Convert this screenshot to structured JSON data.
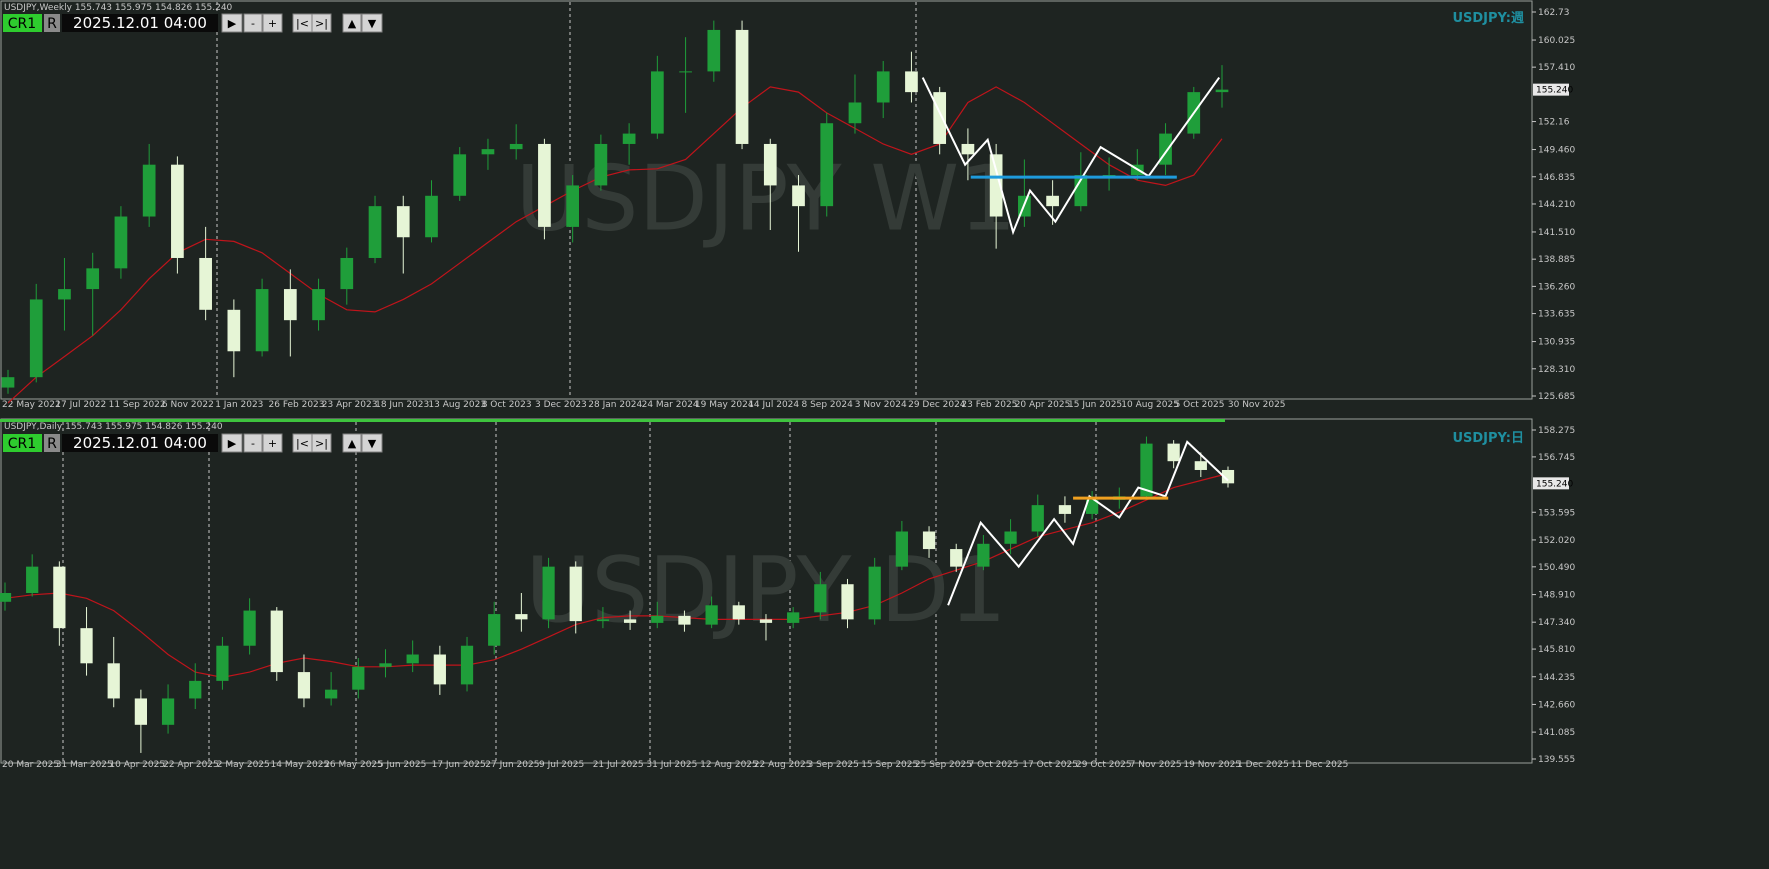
{
  "panels": [
    {
      "header": "USDJPY,Weekly  155.743 155.975 154.826 155.240",
      "cr": "CR1",
      "r": "R",
      "datetime": "2025.12.01 04:00",
      "buttons": [
        "▶",
        "-",
        "+",
        "|<",
        ">|",
        "▲",
        "▼"
      ],
      "watermark": "USDJPY W1",
      "symbol_tag": "USDJPY:週",
      "ylim": [
        125.685,
        162.73
      ],
      "yticks": [
        162.73,
        160.025,
        {
          "value": 157.41,
          "label": "157.410"
        },
        152.16,
        {
          "value": 149.46,
          "label": "149.460"
        },
        146.835,
        {
          "value": 144.21,
          "label": "144.210"
        },
        {
          "value": 141.51,
          "label": "141.510"
        },
        138.885,
        {
          "value": 136.26,
          "label": "136.260"
        },
        133.635,
        130.935,
        {
          "value": 128.31,
          "label": "128.310"
        },
        125.685
      ],
      "price_tag": 155.24,
      "price_tag_label": "155.240",
      "xticks": [
        "22 May 2022",
        "17 Jul 2022",
        "11 Sep 2022",
        "6 Nov 2022",
        "1 Jan 2023",
        "26 Feb 2023",
        "23 Apr 2023",
        "18 Jun 2023",
        "13 Aug 2023",
        "8 Oct 2023",
        "3 Dec 2023",
        "28 Jan 2024",
        "24 Mar 2024",
        "19 May 2024",
        "14 Jul 2024",
        "8 Sep 2024",
        "3 Nov 2024",
        "29 Dec 2024",
        "23 Feb 2025",
        "20 Apr 2025",
        "15 Jun 2025",
        "10 Aug 2025",
        "5 Oct 2025",
        "30 Nov 2025"
      ],
      "candles": [
        [
          126.5,
          128.2,
          125.9,
          127.5
        ],
        [
          127.5,
          136.5,
          127,
          135
        ],
        [
          135,
          139,
          132,
          136
        ],
        [
          136,
          139.5,
          131.5,
          138
        ],
        [
          138,
          144,
          137,
          143
        ],
        [
          143,
          150,
          142,
          148
        ],
        [
          148,
          148.8,
          137.5,
          139
        ],
        [
          139,
          142,
          133,
          134
        ],
        [
          134,
          135,
          127.5,
          130
        ],
        [
          130,
          137,
          129.5,
          136
        ],
        [
          136,
          137.9,
          129.5,
          133
        ],
        [
          133,
          137,
          132,
          136
        ],
        [
          136,
          140,
          134.5,
          139
        ],
        [
          139,
          145,
          138.5,
          144
        ],
        [
          144,
          145,
          137.5,
          141
        ],
        [
          141,
          146.5,
          140.5,
          145
        ],
        [
          145,
          149.7,
          144.5,
          149
        ],
        [
          149,
          150.5,
          147.5,
          149.5
        ],
        [
          149.5,
          151.9,
          148.5,
          150
        ],
        [
          150,
          150.5,
          140.8,
          142
        ],
        [
          142,
          147,
          140.5,
          146
        ],
        [
          146,
          150.9,
          145.5,
          150
        ],
        [
          150,
          152,
          148,
          151
        ],
        [
          151,
          158.5,
          150.5,
          157
        ],
        [
          157,
          160.3,
          153,
          157
        ],
        [
          157,
          161.9,
          156,
          161
        ],
        [
          161,
          161.9,
          149.5,
          150
        ],
        [
          150,
          150.5,
          141.7,
          146
        ],
        [
          146,
          147,
          139.6,
          144
        ],
        [
          144,
          153,
          143,
          152
        ],
        [
          152,
          156.7,
          151,
          154
        ],
        [
          154,
          158,
          152.5,
          157
        ],
        [
          157,
          158.9,
          154,
          155
        ],
        [
          155,
          155.5,
          149,
          150
        ],
        [
          150,
          151.5,
          146.5,
          149
        ],
        [
          149,
          150,
          139.9,
          143
        ],
        [
          143,
          148.5,
          142,
          145
        ],
        [
          145,
          146.5,
          142.2,
          144
        ],
        [
          144,
          149.2,
          143.5,
          147
        ],
        [
          147,
          148.7,
          145.5,
          147
        ],
        [
          147,
          149.5,
          146.5,
          148
        ],
        [
          148,
          152,
          147,
          151
        ],
        [
          151,
          155.5,
          150.5,
          155
        ],
        [
          155,
          157.6,
          153.5,
          155.24
        ]
      ],
      "ma": [
        125,
        127.5,
        129.5,
        131.5,
        134,
        137,
        139.5,
        140.8,
        140.6,
        139.5,
        137.5,
        135.5,
        134,
        133.8,
        135,
        136.5,
        138.5,
        140.5,
        142.5,
        144,
        145.5,
        146.8,
        147.5,
        147.6,
        148.5,
        151,
        153.5,
        155.5,
        155,
        153,
        151.5,
        150,
        149,
        150,
        154,
        155.5,
        154,
        152,
        150,
        148,
        146.5,
        146,
        147,
        150.5
      ],
      "zigzag": {
        "x": [
          32.4,
          33.9,
          34.7,
          35.6,
          36.2,
          37.1,
          38.7,
          40.4,
          42.9
        ],
        "values": [
          156.4,
          148,
          150.4,
          141.5,
          145.5,
          142.5,
          149.7,
          146.9,
          156.4
        ]
      },
      "level": {
        "x": [
          34.1,
          41.4
        ],
        "value": 146.8,
        "color": "#1e9bdc"
      }
    },
    {
      "header": "USDJPY,Daily  155.743 155.975 154.826 155.240",
      "cr": "CR1",
      "r": "R",
      "datetime": "2025.12.01 04:00",
      "buttons": [
        "▶",
        "-",
        "+",
        "|<",
        ">|",
        "▲",
        "▼"
      ],
      "watermark": "USDJPY D1",
      "symbol_tag": "USDJPY:日",
      "ylim": [
        139.555,
        158.275
      ],
      "yticks": [
        158.275,
        156.745,
        153.595,
        {
          "value": 152.02,
          "label": "152.020"
        },
        {
          "value": 150.49,
          "label": "150.490"
        },
        {
          "value": 148.91,
          "label": "148.910"
        },
        {
          "value": 147.34,
          "label": "147.340"
        },
        {
          "value": 145.81,
          "label": "145.810"
        },
        144.235,
        {
          "value": 142.66,
          "label": "142.660"
        },
        141.085,
        139.555
      ],
      "price_tag": 155.24,
      "price_tag_label": "155.240",
      "xticks": [
        "20 Mar 2025",
        "31 Mar 2025",
        "10 Apr 2025",
        "22 Apr 2025",
        "2 May 2025",
        "14 May 2025",
        "26 May 2025",
        "5 Jun 2025",
        "17 Jun 2025",
        "27 Jun 2025",
        "9 Jul 2025",
        "21 Jul 2025",
        "31 Jul 2025",
        "12 Aug 2025",
        "22 Aug 2025",
        "3 Sep 2025",
        "15 Sep 2025",
        "25 Sep 2025",
        "7 Oct 2025",
        "17 Oct 2025",
        "29 Oct 2025",
        "7 Nov 2025",
        "19 Nov 2025",
        "1 Dec 2025",
        "11 Dec 2025"
      ],
      "candles": [
        [
          148.5,
          149.6,
          148,
          149
        ],
        [
          149,
          151.2,
          148.8,
          150.5
        ],
        [
          150.5,
          150.8,
          146,
          147
        ],
        [
          147,
          148.2,
          144.3,
          145
        ],
        [
          145,
          146.5,
          142.5,
          143
        ],
        [
          143,
          143.5,
          139.9,
          141.5
        ],
        [
          141.5,
          143.8,
          141,
          143
        ],
        [
          143,
          145,
          142.4,
          144
        ],
        [
          144,
          146.5,
          143.5,
          146
        ],
        [
          146,
          148.7,
          145.5,
          148
        ],
        [
          148,
          148.2,
          144,
          144.5
        ],
        [
          144.5,
          145.5,
          142.5,
          143
        ],
        [
          143,
          144.5,
          142.6,
          143.5
        ],
        [
          143.5,
          145.3,
          143,
          144.8
        ],
        [
          144.8,
          145.8,
          144.2,
          145
        ],
        [
          145,
          146.3,
          144.5,
          145.5
        ],
        [
          145.5,
          146,
          143.2,
          143.8
        ],
        [
          143.8,
          146.5,
          143.4,
          146
        ],
        [
          146,
          148.5,
          145.5,
          147.8
        ],
        [
          147.8,
          149,
          146.8,
          147.5
        ],
        [
          147.5,
          151,
          147,
          150.5
        ],
        [
          150.5,
          150.8,
          146.7,
          147.4
        ],
        [
          147.4,
          148.2,
          147,
          147.5
        ],
        [
          147.5,
          148,
          146.9,
          147.3
        ],
        [
          147.3,
          148.5,
          147,
          147.7
        ],
        [
          147.7,
          148,
          146.8,
          147.2
        ],
        [
          147.2,
          148.8,
          147,
          148.3
        ],
        [
          148.3,
          148.5,
          147.2,
          147.5
        ],
        [
          147.5,
          147.8,
          146.3,
          147.3
        ],
        [
          147.3,
          148.2,
          147,
          147.9
        ],
        [
          147.9,
          150.2,
          147.5,
          149.5
        ],
        [
          149.5,
          149.8,
          147,
          147.5
        ],
        [
          147.5,
          151,
          147.2,
          150.5
        ],
        [
          150.5,
          153.1,
          150.3,
          152.5
        ],
        [
          152.5,
          152.8,
          151,
          151.5
        ],
        [
          151.5,
          151.8,
          150.2,
          150.5
        ],
        [
          150.5,
          152.3,
          150.3,
          151.8
        ],
        [
          151.8,
          153.2,
          151.2,
          152.5
        ],
        [
          152.5,
          154.6,
          152.2,
          154
        ],
        [
          154,
          154.5,
          153,
          153.5
        ],
        [
          153.5,
          154.8,
          153.2,
          154.3
        ],
        [
          154.3,
          155,
          153.8,
          154.5
        ],
        [
          154.5,
          157.9,
          154.3,
          157.5
        ],
        [
          157.5,
          157.7,
          156.1,
          156.5
        ],
        [
          156.5,
          157,
          155.6,
          156
        ],
        [
          156,
          156.2,
          155,
          155.24
        ]
      ],
      "ma": [
        148.7,
        148.9,
        149,
        148.7,
        148,
        146.8,
        145.5,
        144.5,
        144.2,
        144.5,
        145,
        145.3,
        145.1,
        144.8,
        144.8,
        144.9,
        144.9,
        144.9,
        145.2,
        145.8,
        146.5,
        147.2,
        147.6,
        147.7,
        147.7,
        147.6,
        147.5,
        147.5,
        147.5,
        147.5,
        147.7,
        147.9,
        148.3,
        149,
        149.8,
        150.3,
        150.8,
        151.5,
        152.2,
        152.6,
        153,
        153.6,
        154.3,
        155,
        155.4,
        155.8
      ],
      "zigzag": {
        "x": [
          34.7,
          35.9,
          37.3,
          38.6,
          39.3,
          39.9,
          41,
          41.7,
          42.7,
          43.5,
          45
        ],
        "values": [
          148.3,
          153,
          150.5,
          153.2,
          151.8,
          154.5,
          153.3,
          155,
          154.5,
          157.6,
          155.4
        ]
      },
      "level": {
        "x": [
          39.3,
          42.8
        ],
        "value": 154.4,
        "color": "#f0a020"
      }
    }
  ]
}
